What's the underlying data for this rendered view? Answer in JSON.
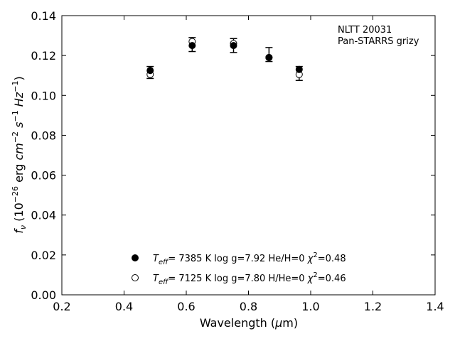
{
  "chart_data": {
    "type": "scatter",
    "xlabel": {
      "pre": "Wavelength (",
      "mu": "μ",
      "post": "m)"
    },
    "ylabel": "f_ν (10^−26 erg cm^−2 s^−1 Hz^−1)",
    "xlim": [
      0.2,
      1.4
    ],
    "ylim": [
      0.0,
      0.14
    ],
    "xticks": [
      "0.2",
      "0.4",
      "0.6",
      "0.8",
      "1.0",
      "1.2",
      "1.4"
    ],
    "yticks": [
      "0.00",
      "0.02",
      "0.04",
      "0.06",
      "0.08",
      "0.10",
      "0.12",
      "0.14"
    ],
    "grid": false,
    "annotation": [
      "NLTT 20031",
      "Pan-STARRS grizy"
    ],
    "observed": {
      "x": [
        0.484,
        0.619,
        0.752,
        0.866,
        0.963
      ],
      "y": [
        0.1115,
        0.1255,
        0.125,
        0.1205,
        0.111
      ],
      "yerr": [
        0.003,
        0.0035,
        0.0035,
        0.0035,
        0.0035
      ]
    },
    "series": [
      {
        "marker": "filled-circle",
        "legend": {
          "teff": "7385 K",
          "logg": "log g=7.92",
          "comp": "He/H=0",
          "chi2": "=0.48"
        },
        "x": [
          0.484,
          0.619,
          0.752,
          0.866,
          0.963
        ],
        "y": [
          0.1125,
          0.125,
          0.125,
          0.119,
          0.113
        ]
      },
      {
        "marker": "open-circle",
        "legend": {
          "teff": "7125 K",
          "logg": "log g=7.80",
          "comp": "H/He=0",
          "chi2": "=0.46"
        },
        "x": [
          0.484,
          0.619,
          0.752,
          0.866,
          0.963
        ],
        "y": [
          0.1105,
          0.127,
          0.126,
          0.119,
          0.1105
        ]
      }
    ]
  }
}
